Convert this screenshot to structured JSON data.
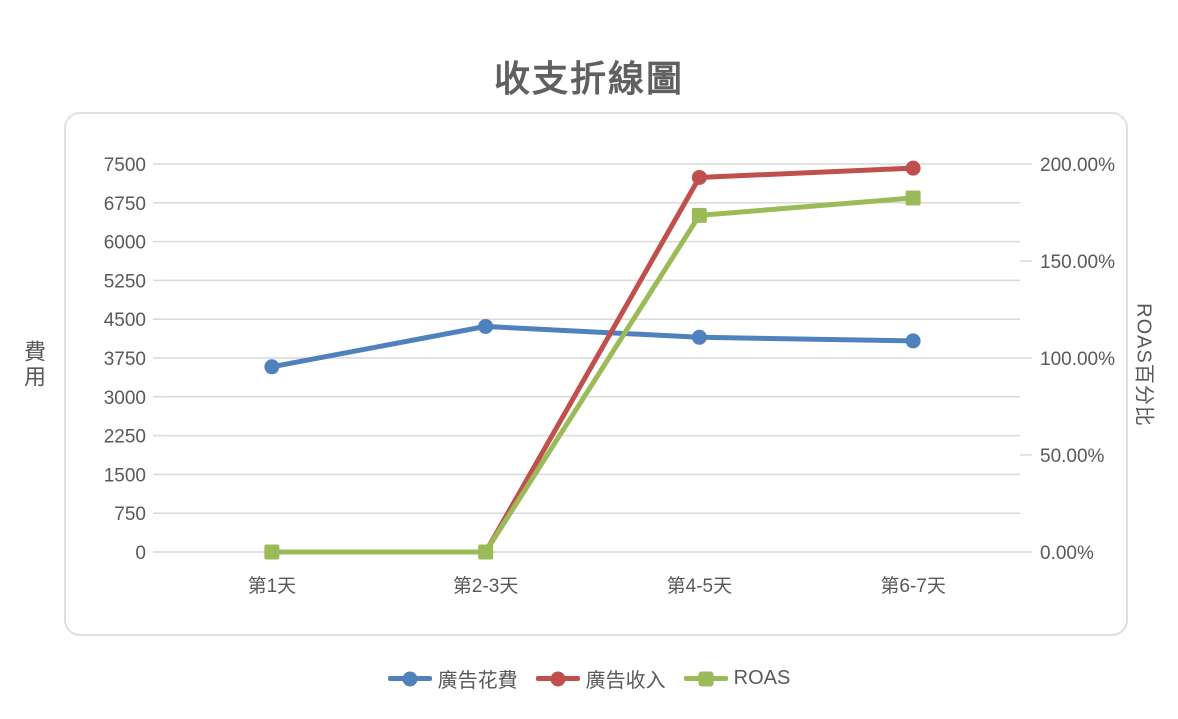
{
  "title": "收支折線圖",
  "colors": {
    "title_text": "#606060",
    "axis_text": "#595959",
    "gridline": "#d9d9d9",
    "card_border": "#e0e0e0",
    "series_blue": "#4f81bd",
    "series_red": "#c0504d",
    "series_green": "#9bbb59"
  },
  "chart_data": {
    "type": "line",
    "title": "收支折線圖",
    "categories": [
      "第1天",
      "第2-3天",
      "第4-5天",
      "第6-7天"
    ],
    "series": [
      {
        "key": "ad-spend",
        "name": "廣告花費",
        "axis": "left",
        "color": "#4f81bd",
        "marker": "circle",
        "values": [
          3580,
          4360,
          4150,
          4080
        ]
      },
      {
        "key": "ad-revenue",
        "name": "廣告收入",
        "axis": "left",
        "color": "#c0504d",
        "marker": "circle",
        "values": [
          0,
          0,
          7240,
          7420
        ]
      },
      {
        "key": "roas",
        "name": "ROAS",
        "axis": "right",
        "color": "#9bbb59",
        "marker": "square",
        "values": [
          0,
          0,
          173.5,
          182.5
        ]
      }
    ],
    "left_axis": {
      "title": "費用",
      "min": 0,
      "max": 7500,
      "step": 750,
      "tick_labels": [
        "0",
        "750",
        "1500",
        "2250",
        "3000",
        "3750",
        "4500",
        "5250",
        "6000",
        "6750",
        "7500"
      ]
    },
    "right_axis": {
      "title": "ROAS百分比",
      "min": 0,
      "max": 200,
      "step": 50,
      "tick_labels": [
        "0.00%",
        "50.00%",
        "100.00%",
        "150.00%",
        "200.00%"
      ]
    },
    "grid": true,
    "legend_position": "bottom",
    "legend": [
      "廣告花費",
      "廣告收入",
      "ROAS"
    ]
  }
}
